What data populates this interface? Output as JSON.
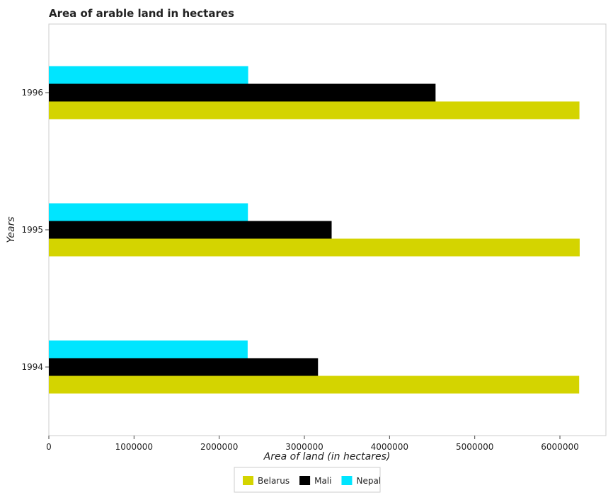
{
  "chart_data": {
    "type": "bar",
    "orientation": "horizontal",
    "title": "Area of arable land in hectares",
    "xlabel": "Area of land (in hectares)",
    "ylabel": "Years",
    "categories": [
      "1994",
      "1995",
      "1996"
    ],
    "series": [
      {
        "name": "Belarus",
        "color": "#d4d400",
        "values": [
          6226000,
          6232000,
          6229000
        ]
      },
      {
        "name": "Mali",
        "color": "#000000",
        "values": [
          3160000,
          3320000,
          4540000
        ]
      },
      {
        "name": "Nepal",
        "color": "#00e5ff",
        "values": [
          2334000,
          2337000,
          2340000
        ]
      }
    ],
    "xlim": [
      0,
      6540000
    ],
    "xticks": [
      "0",
      "1000000",
      "2000000",
      "3000000",
      "4000000",
      "5000000",
      "6000000"
    ],
    "grid": false,
    "legend_position": "bottom-center"
  }
}
